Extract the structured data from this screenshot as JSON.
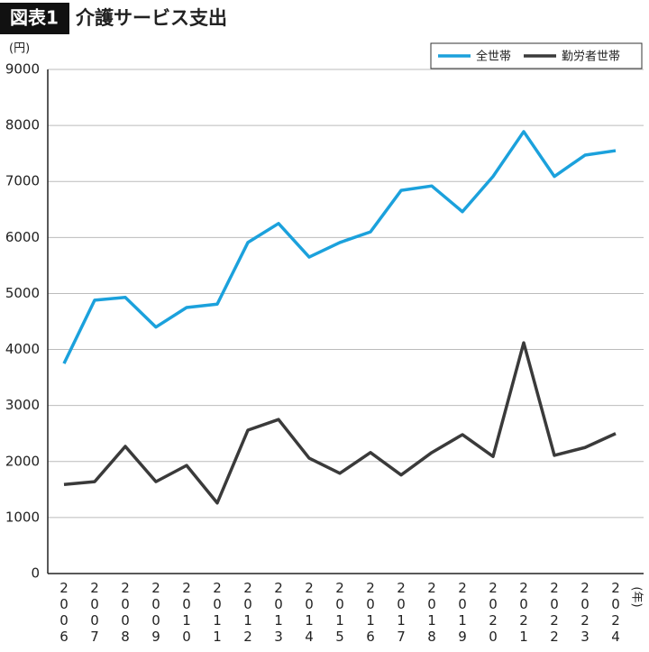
{
  "chart_data": {
    "type": "line",
    "figure_label": "図表1",
    "title": "介護サービス支出",
    "y_unit": "(円)",
    "x_unit": "(年)",
    "categories": [
      "2006",
      "2007",
      "2008",
      "2009",
      "2010",
      "2011",
      "2012",
      "2013",
      "2014",
      "2015",
      "2016",
      "2017",
      "2018",
      "2019",
      "2020",
      "2021",
      "2022",
      "2023",
      "2024"
    ],
    "series": [
      {
        "name": "全世帯",
        "color": "#1ba1dc",
        "values": [
          3750,
          4880,
          4930,
          4400,
          4750,
          4810,
          5910,
          6250,
          5650,
          5910,
          6100,
          6840,
          6920,
          6460,
          7090,
          7890,
          7090,
          7470,
          7550
        ]
      },
      {
        "name": "勤労者世帯",
        "color": "#3a3a3a",
        "values": [
          1590,
          1640,
          2270,
          1640,
          1930,
          1260,
          2560,
          2750,
          2060,
          1790,
          2160,
          1760,
          2160,
          2480,
          2090,
          4120,
          2110,
          2250,
          2500
        ]
      }
    ],
    "ylim": [
      0,
      9000
    ],
    "yticks": [
      0,
      1000,
      2000,
      3000,
      4000,
      5000,
      6000,
      7000,
      8000,
      9000
    ],
    "grid": true,
    "legend": "top-right"
  }
}
